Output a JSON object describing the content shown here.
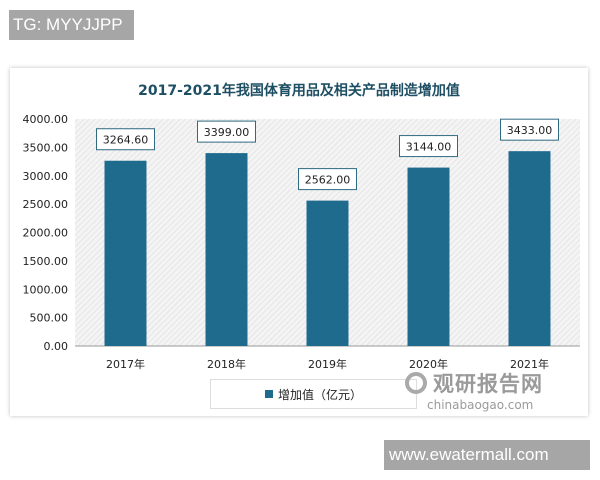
{
  "watermarks": {
    "top_left": "TG: MYYJJPP",
    "bottom_right": "www.ewatermall.com"
  },
  "logo": {
    "name_cn": "观研报告网",
    "domain": "chinabaogao.com"
  },
  "colors": {
    "bar": "#1f6b8e",
    "title": "#1d4e63"
  },
  "chart_data": {
    "type": "bar",
    "title": "2017-2021年我国体育用品及相关产品制造增加值",
    "categories": [
      "2017年",
      "2018年",
      "2019年",
      "2020年",
      "2021年"
    ],
    "series": [
      {
        "name": "增加值（亿元）",
        "values": [
          3264.6,
          3399.0,
          2562.0,
          3144.0,
          3433.0
        ]
      }
    ],
    "data_labels": [
      "3264.60",
      "3399.00",
      "2562.00",
      "3144.00",
      "3433.00"
    ],
    "ylim": [
      0,
      4000
    ],
    "yticks": [
      "0.00",
      "500.00",
      "1000.00",
      "1500.00",
      "2000.00",
      "2500.00",
      "3000.00",
      "3500.00",
      "4000.00"
    ],
    "legend": "bottom",
    "grid": false,
    "plot_background": "hatched"
  }
}
